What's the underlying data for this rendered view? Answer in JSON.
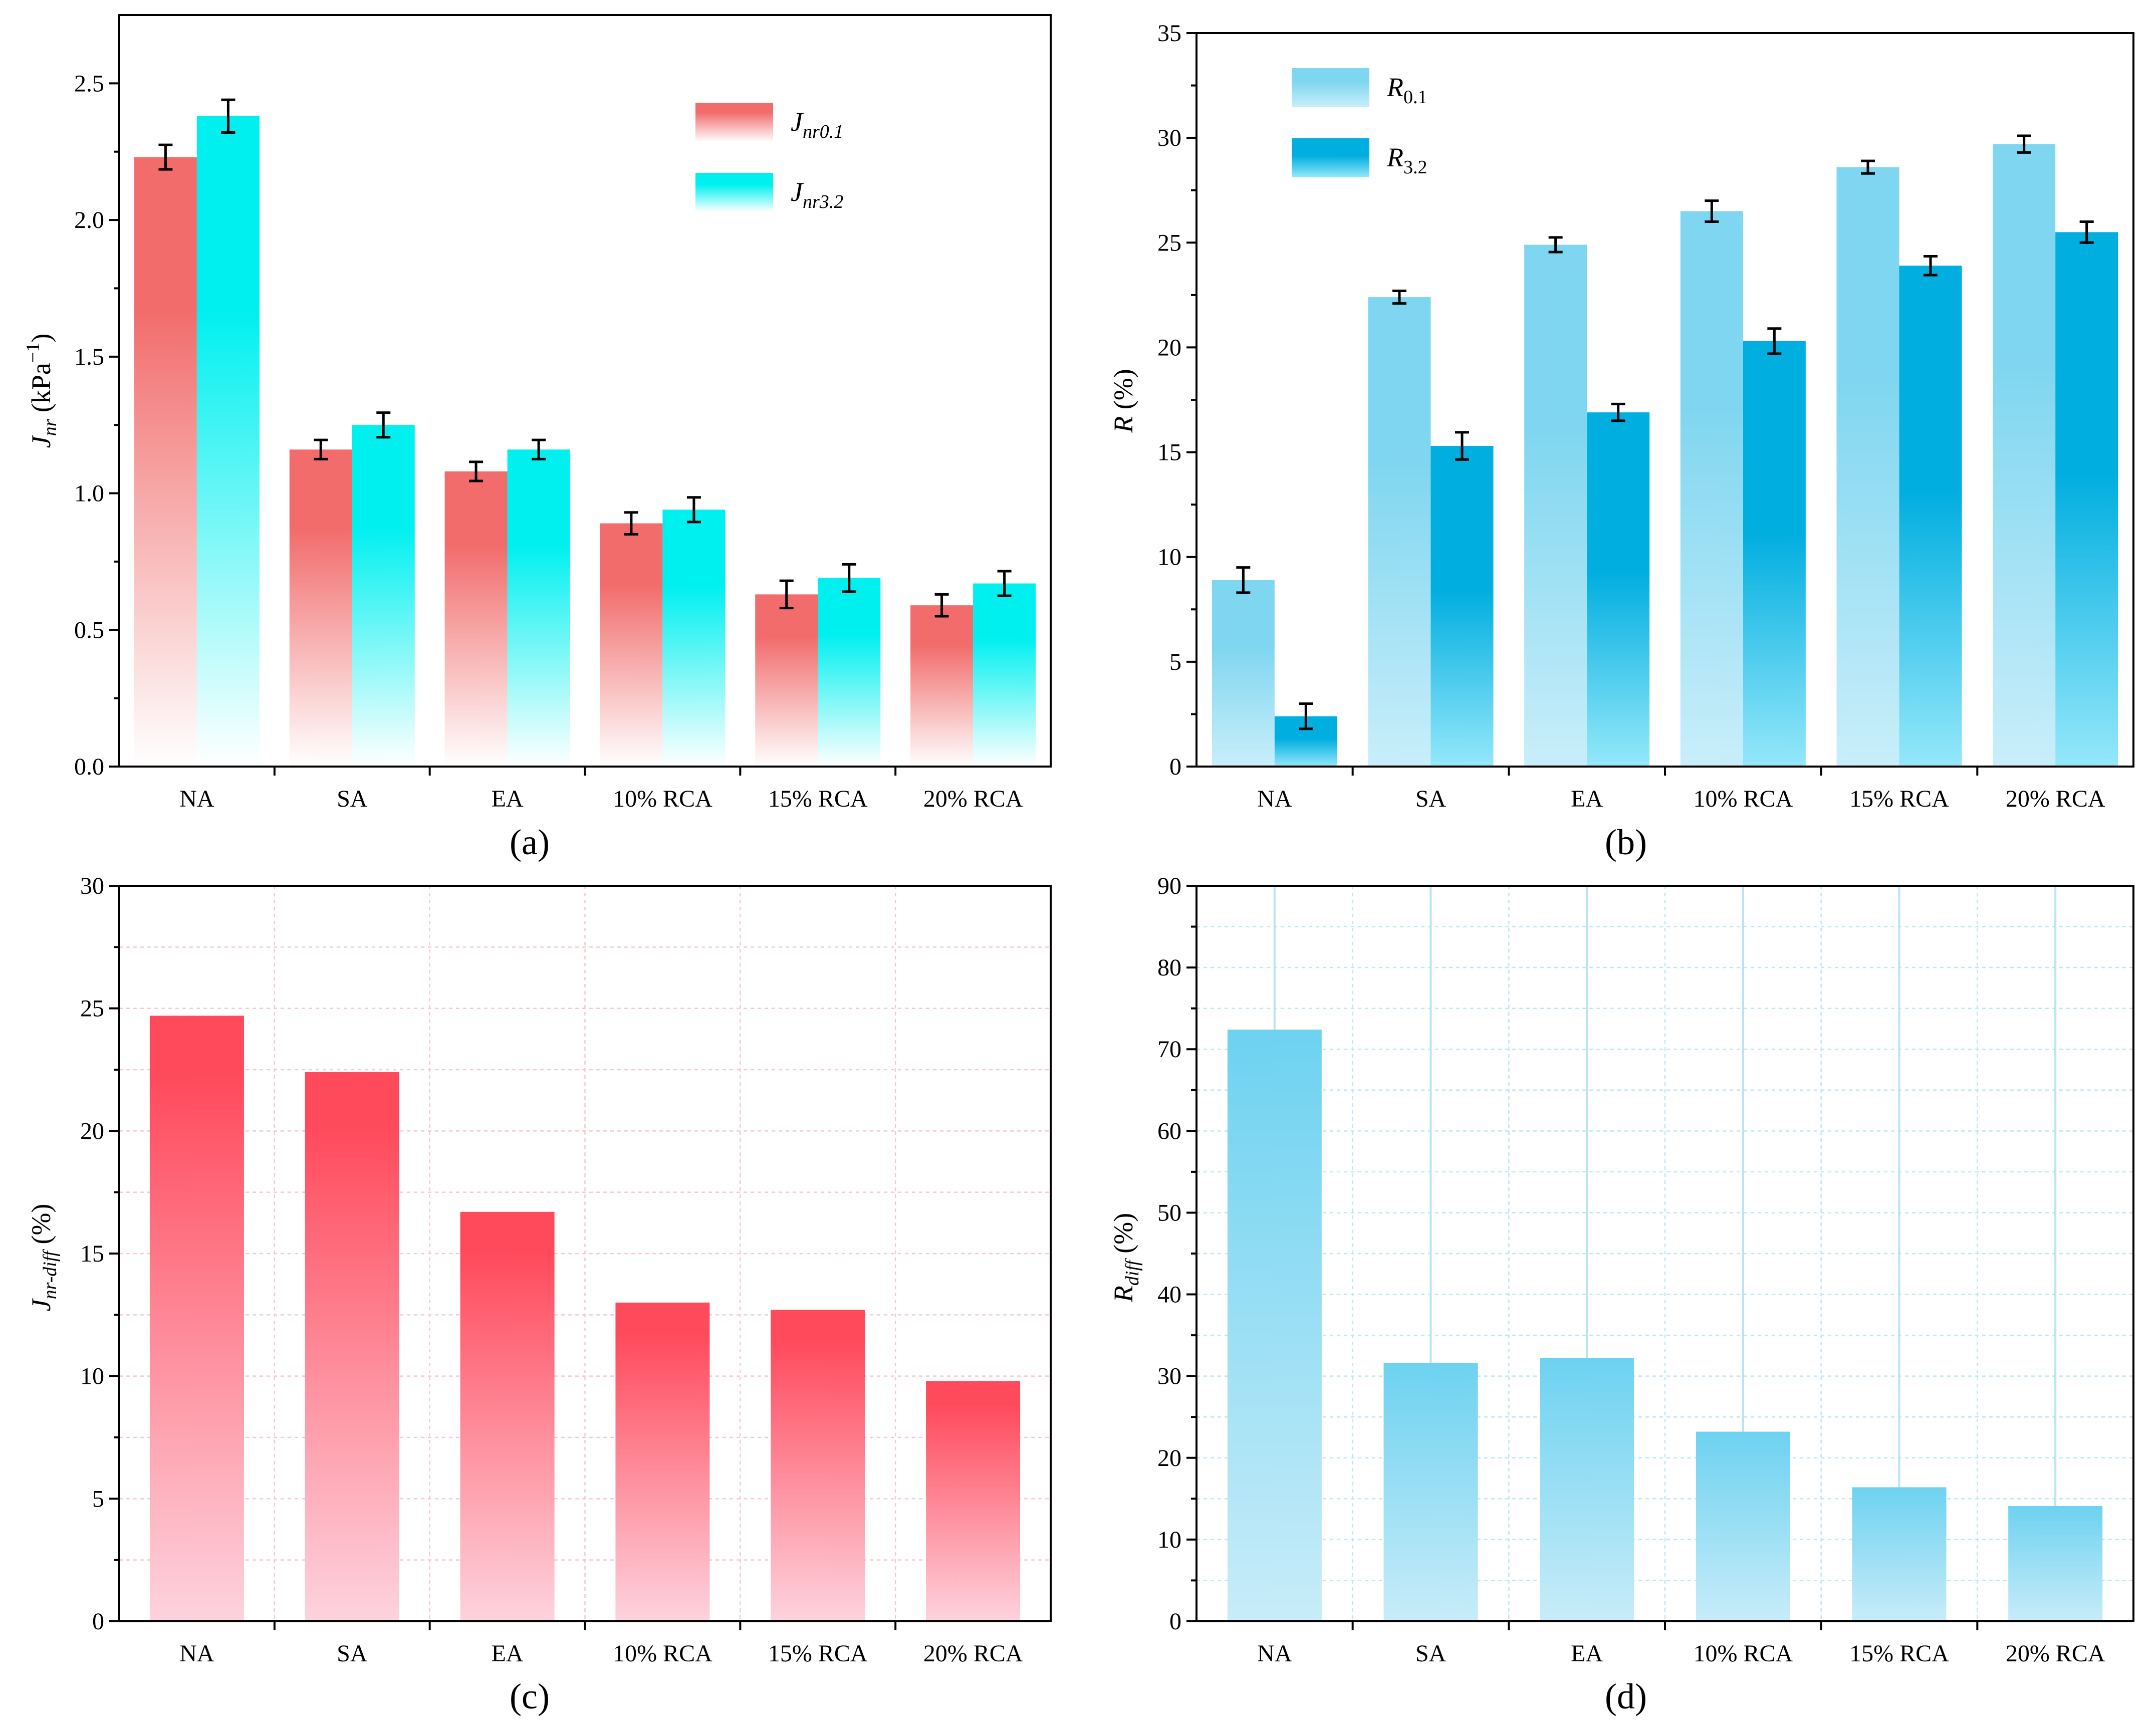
{
  "colors": {
    "jnr01_top": "#f26c6c",
    "jnr01_bottom": "#ffffff",
    "jnr32_top": "#00f0f0",
    "jnr32_bottom": "#ffffff",
    "r01_top": "#7fd6f0",
    "r01_bottom": "#c9eefa",
    "r32_top": "#00aee0",
    "r32_bottom": "#95e8fa",
    "jdiff_top": "#ff4a5c",
    "jdiff_bottom": "#fdd3de",
    "rdiff_top": "#6dd2f0",
    "rdiff_bottom": "#c8ecf9"
  },
  "chart_data": [
    {
      "id": "a",
      "type": "bar",
      "panel_label": "(a)",
      "categories": [
        "NA",
        "SA",
        "EA",
        "10% RCA",
        "15% RCA",
        "20% RCA"
      ],
      "ylabel_main": "J",
      "ylabel_sub": "nr",
      "ylabel_unit": " (kPa",
      "ylabel_sup": "−1",
      "ylabel_close": ")",
      "ylim": [
        0,
        2.75
      ],
      "yticks": [
        "0.0",
        "0.5",
        "1.0",
        "1.5",
        "2.0",
        "2.5"
      ],
      "grid": false,
      "legend_position": "top-right",
      "series": [
        {
          "name": "J",
          "sub": "nr0.1",
          "values": [
            2.23,
            1.16,
            1.08,
            0.89,
            0.63,
            0.59
          ],
          "errors": [
            0.045,
            0.035,
            0.035,
            0.04,
            0.05,
            0.04
          ]
        },
        {
          "name": "J",
          "sub": "nr3.2",
          "values": [
            2.38,
            1.25,
            1.16,
            0.94,
            0.69,
            0.67
          ],
          "errors": [
            0.06,
            0.045,
            0.035,
            0.045,
            0.05,
            0.045
          ]
        }
      ]
    },
    {
      "id": "b",
      "type": "bar",
      "panel_label": "(b)",
      "categories": [
        "NA",
        "SA",
        "EA",
        "10% RCA",
        "15% RCA",
        "20% RCA"
      ],
      "ylabel_main": "R",
      "ylabel_unit": " (%)",
      "ylim": [
        0,
        35
      ],
      "yticks": [
        "0",
        "5",
        "10",
        "15",
        "20",
        "25",
        "30",
        "35"
      ],
      "grid": false,
      "legend_position": "top-left",
      "series": [
        {
          "name": "R",
          "sub": "0.1",
          "values": [
            8.9,
            22.4,
            24.9,
            26.5,
            28.6,
            29.7
          ],
          "errors": [
            0.6,
            0.3,
            0.35,
            0.5,
            0.3,
            0.4
          ]
        },
        {
          "name": "R",
          "sub": "3.2",
          "values": [
            2.4,
            15.3,
            16.9,
            20.3,
            23.9,
            25.5
          ],
          "errors": [
            0.6,
            0.65,
            0.4,
            0.6,
            0.45,
            0.5
          ]
        }
      ]
    },
    {
      "id": "c",
      "type": "bar",
      "panel_label": "(c)",
      "categories": [
        "NA",
        "SA",
        "EA",
        "10% RCA",
        "15% RCA",
        "20% RCA"
      ],
      "ylabel_main": "J",
      "ylabel_sub": "nr-diff",
      "ylabel_unit": " (%)",
      "ylim": [
        0,
        30
      ],
      "yticks": [
        "0",
        "5",
        "10",
        "15",
        "20",
        "25",
        "30"
      ],
      "grid": true,
      "values": [
        24.7,
        22.4,
        16.7,
        13.0,
        12.7,
        9.8
      ]
    },
    {
      "id": "d",
      "type": "bar",
      "panel_label": "(d)",
      "categories": [
        "NA",
        "SA",
        "EA",
        "10% RCA",
        "15% RCA",
        "20% RCA"
      ],
      "ylabel_main": "R",
      "ylabel_sub": "diff",
      "ylabel_unit": " (%)",
      "ylim": [
        0,
        90
      ],
      "yticks": [
        "0",
        "10",
        "20",
        "30",
        "40",
        "50",
        "60",
        "70",
        "80",
        "90"
      ],
      "grid": true,
      "values": [
        72.4,
        31.6,
        32.2,
        23.2,
        16.4,
        14.1
      ]
    }
  ]
}
